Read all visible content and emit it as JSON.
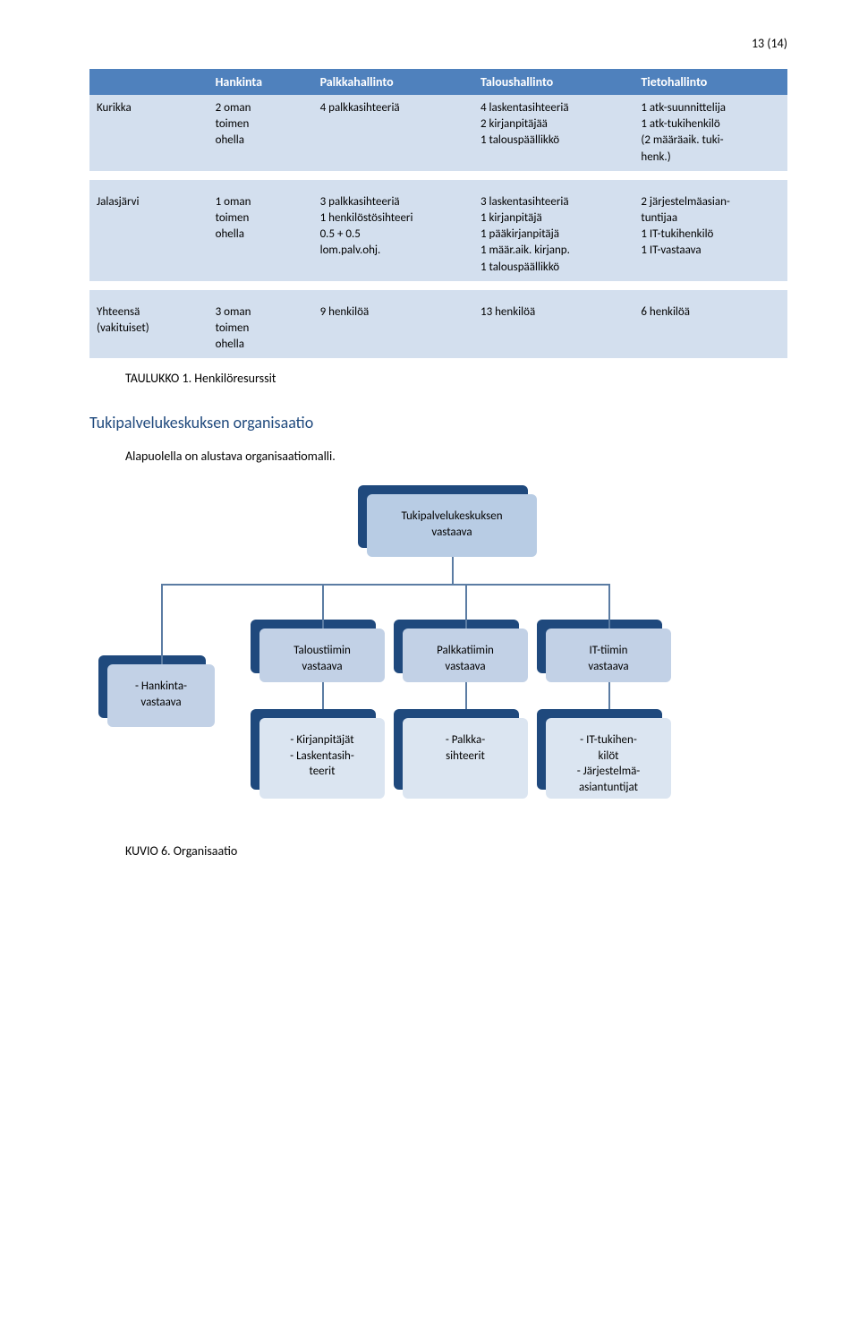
{
  "page_number": "13 (14)",
  "table": {
    "headers": [
      "",
      "Hankinta",
      "Palkkahallinto",
      "Taloushallinto",
      "Tietohallinto"
    ],
    "header_bg": "#4f81bd",
    "header_fg": "#ffffff",
    "row_alt_bg": "#d3dfee",
    "rows": [
      {
        "cells": [
          "Kurikka",
          "2 oman\ntoimen\nohella",
          "4 palkkasihteeriä",
          "4 laskentasihteeriä\n2 kirjanpitäjää\n1 talouspäällikkö",
          "1 atk-suunnittelija\n1 atk-tukihenkilö\n(2 määräaik. tuki-\nhenk.)"
        ]
      },
      {
        "cells": [
          "Jalasjärvi",
          "1 oman\ntoimen\nohella",
          "3 palkkasihteeriä\n1 henkilöstösihteeri\n0.5 + 0.5\nlom.palv.ohj.",
          "3 laskentasihteeriä\n1 kirjanpitäjä\n1 pääkirjanpitäjä\n1 määr.aik. kirjanp.\n1 talouspäällikkö",
          "2 järjestelmäasian-\ntuntijaa\n1 IT-tukihenkilö\n1 IT-vastaava"
        ]
      },
      {
        "cells": [
          "Yhteensä\n(vakituiset)",
          "3 oman\ntoimen\nohella",
          "9 henkilöä",
          "13 henkilöä",
          "6 henkilöä"
        ]
      }
    ]
  },
  "caption_table": "TAULUKKO 1. Henkilöresurssit",
  "section_heading": "Tukipalvelukeskuksen organisaatio",
  "intro_para": "Alapuolella on alustava organisaatiomalli.",
  "org": {
    "colors": {
      "shadow_dark": "#1f497d",
      "level0_fill": "#b8cce4",
      "level1_fill": "#c2d1e6",
      "level2_fill": "#dbe5f1",
      "line": "#5b7ca3"
    },
    "root": {
      "label": "Tukipalvelukeskuksen\nvastaava"
    },
    "side": {
      "label": "- Hankinta-\nvastaava"
    },
    "level1": [
      {
        "label": "Taloustiimin\nvastaava"
      },
      {
        "label": "Palkkatiimin\nvastaava"
      },
      {
        "label": "IT-tiimin\nvastaava"
      }
    ],
    "level2": [
      {
        "label": "- Kirjanpitäjät\n- Laskentasih-\nteerit"
      },
      {
        "label": "- Palkka-\nsihteerit"
      },
      {
        "label": "- IT-tukihen-\nkilöt\n- Järjestelmä-\nasiantuntijat"
      }
    ]
  },
  "caption_figure": "KUVIO 6. Organisaatio"
}
